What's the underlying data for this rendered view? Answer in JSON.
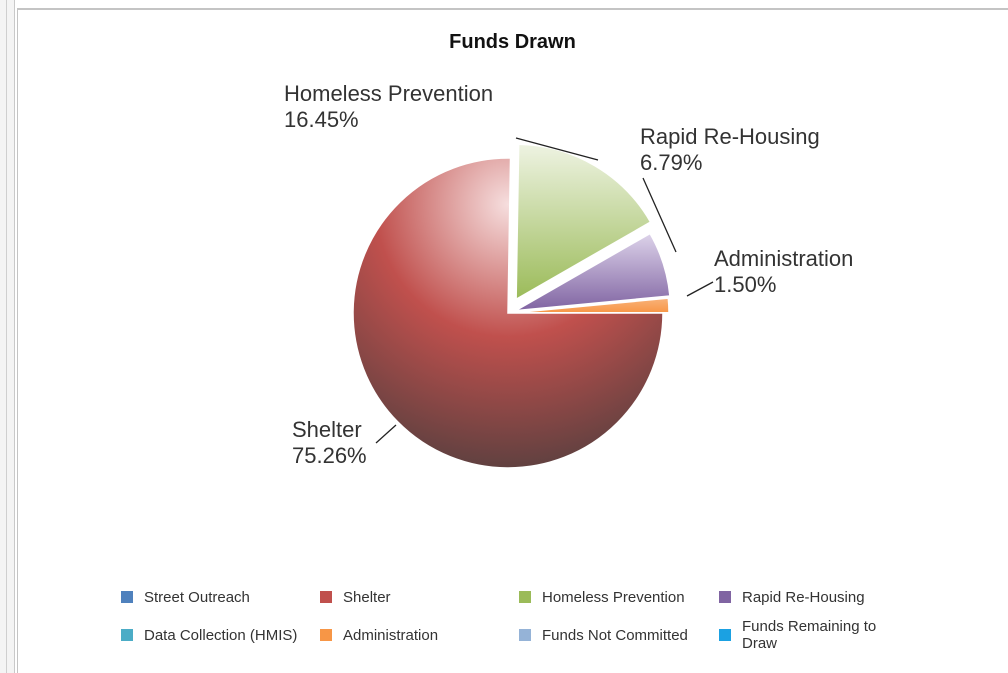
{
  "chart_data": {
    "type": "pie",
    "title": "Funds Drawn",
    "slices": [
      {
        "name": "Shelter",
        "percent": 75.26,
        "label": "75.26%",
        "color": "#c0504d"
      },
      {
        "name": "Homeless Prevention",
        "percent": 16.45,
        "label": "16.45%",
        "color": "#9bbb59"
      },
      {
        "name": "Rapid Re-Housing",
        "percent": 6.79,
        "label": "6.79%",
        "color": "#8064a2"
      },
      {
        "name": "Administration",
        "percent": 1.5,
        "label": "1.50%",
        "color": "#f79646"
      }
    ],
    "legend": {
      "position": "bottom",
      "items": [
        {
          "name": "Street Outreach",
          "color": "#4f81bd"
        },
        {
          "name": "Shelter",
          "color": "#c0504d"
        },
        {
          "name": "Homeless Prevention",
          "color": "#9bbb59"
        },
        {
          "name": "Rapid Re-Housing",
          "color": "#8064a2"
        },
        {
          "name": "Data Collection (HMIS)",
          "color": "#4bacc6"
        },
        {
          "name": "Administration",
          "color": "#f79646"
        },
        {
          "name": "Funds Not Committed",
          "color": "#95b3d7"
        },
        {
          "name": "Funds Remaining to Draw",
          "color": "#1ba1e2"
        }
      ]
    }
  }
}
